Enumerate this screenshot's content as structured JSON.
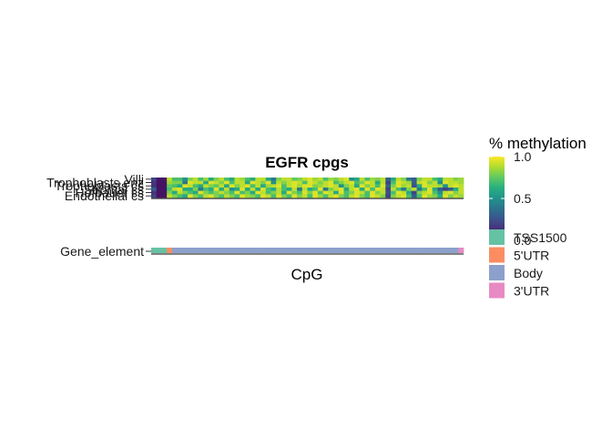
{
  "chart_data": {
    "type": "heatmap",
    "title": "EGFR cpgs",
    "xlabel": "CpG",
    "ylabel": "",
    "rows": [
      "Villi",
      "Trophoblasts enz",
      "Trophoblasts cs",
      "Stromal cs",
      "Hofbauer cs",
      "Endothelial cs"
    ],
    "n_cpgs": 60,
    "heat_values": [
      [
        0.2,
        0.05,
        0.05,
        0.9,
        0.7,
        0.7,
        0.5,
        0.8,
        0.9,
        0.7,
        0.85,
        0.6,
        0.8,
        0.9,
        0.7,
        0.6,
        0.9,
        0.85,
        0.7,
        0.6,
        0.9,
        0.9,
        0.6,
        0.4,
        0.8,
        0.9,
        0.9,
        0.75,
        0.8,
        0.9,
        0.95,
        0.85,
        0.9,
        0.7,
        0.85,
        0.8,
        0.9,
        0.95,
        0.5,
        0.6,
        0.9,
        0.7,
        0.85,
        0.8,
        0.9,
        0.3,
        0.6,
        0.9,
        0.8,
        0.4,
        0.3,
        0.8,
        0.9,
        0.9,
        0.7,
        0.6,
        0.9,
        0.9,
        0.8,
        0.85
      ],
      [
        0.15,
        0.05,
        0.05,
        0.85,
        0.8,
        0.8,
        0.4,
        0.95,
        0.9,
        0.9,
        0.6,
        0.95,
        0.9,
        0.8,
        0.95,
        0.7,
        0.9,
        0.9,
        0.6,
        0.95,
        0.9,
        0.8,
        0.95,
        0.5,
        0.9,
        0.8,
        0.9,
        0.95,
        0.9,
        0.7,
        0.95,
        0.9,
        0.8,
        0.9,
        0.95,
        0.7,
        0.8,
        0.9,
        0.95,
        0.7,
        0.8,
        0.95,
        0.9,
        0.6,
        0.9,
        0.2,
        0.7,
        0.95,
        0.9,
        0.85,
        0.3,
        0.9,
        0.95,
        0.8,
        0.9,
        0.5,
        0.95,
        0.9,
        0.9,
        0.85
      ],
      [
        0.15,
        0.05,
        0.05,
        0.75,
        0.7,
        0.6,
        0.95,
        0.9,
        0.7,
        0.6,
        0.9,
        0.8,
        0.75,
        0.9,
        0.6,
        0.95,
        0.8,
        0.9,
        0.95,
        0.7,
        0.9,
        0.6,
        0.85,
        0.9,
        0.95,
        0.7,
        0.9,
        0.95,
        0.85,
        0.95,
        0.95,
        0.8,
        0.85,
        0.9,
        0.95,
        0.9,
        0.5,
        0.8,
        0.9,
        0.6,
        0.95,
        0.8,
        0.9,
        0.7,
        0.95,
        0.3,
        0.8,
        0.95,
        0.85,
        0.9,
        0.25,
        0.6,
        0.95,
        0.9,
        0.9,
        0.85,
        0.5,
        0.9,
        0.95,
        0.9
      ],
      [
        0.3,
        0.05,
        0.05,
        0.7,
        0.9,
        0.95,
        0.6,
        0.6,
        0.8,
        0.4,
        0.7,
        0.6,
        0.95,
        0.6,
        0.9,
        0.5,
        0.6,
        0.95,
        0.6,
        0.9,
        0.6,
        0.95,
        0.7,
        0.6,
        0.9,
        0.7,
        0.6,
        0.9,
        0.4,
        0.9,
        0.6,
        0.7,
        0.95,
        0.4,
        0.8,
        0.9,
        0.95,
        0.6,
        0.9,
        0.95,
        0.6,
        0.95,
        0.7,
        0.95,
        0.9,
        0.2,
        0.9,
        0.7,
        0.4,
        0.8,
        0.9,
        0.4,
        0.7,
        0.95,
        0.6,
        0.3,
        0.2,
        0.3,
        0.6,
        0.9
      ],
      [
        0.15,
        0.05,
        0.05,
        0.8,
        0.6,
        0.9,
        0.8,
        0.7,
        0.6,
        0.95,
        0.8,
        0.7,
        0.8,
        0.9,
        0.8,
        0.7,
        0.95,
        0.7,
        0.8,
        0.6,
        0.95,
        0.9,
        0.7,
        0.8,
        0.9,
        0.6,
        0.95,
        0.8,
        0.7,
        0.95,
        0.8,
        0.95,
        0.7,
        0.95,
        0.9,
        0.6,
        0.95,
        0.7,
        0.8,
        0.95,
        0.9,
        0.7,
        0.95,
        0.8,
        0.9,
        0.25,
        0.7,
        0.95,
        0.9,
        0.6,
        0.2,
        0.8,
        0.9,
        0.95,
        0.7,
        0.5,
        0.9,
        0.95,
        0.8,
        0.9
      ],
      [
        0.2,
        0.05,
        0.05,
        0.9,
        0.8,
        0.7,
        0.6,
        0.95,
        0.8,
        0.7,
        0.9,
        0.95,
        0.8,
        0.7,
        0.9,
        0.8,
        0.7,
        0.95,
        0.85,
        0.8,
        0.7,
        0.95,
        0.9,
        0.7,
        0.95,
        0.8,
        0.7,
        0.95,
        0.8,
        0.9,
        0.7,
        0.95,
        0.85,
        0.7,
        0.9,
        0.95,
        0.8,
        0.7,
        0.9,
        0.95,
        0.8,
        0.7,
        0.95,
        0.9,
        0.8,
        0.2,
        0.8,
        0.9,
        0.95,
        0.7,
        0.3,
        0.7,
        0.95,
        0.85,
        0.8,
        0.6,
        0.95,
        0.8,
        0.9,
        0.85
      ]
    ],
    "gene_element_row_label": "Gene_element",
    "gene_elements": [
      "TSS1500",
      "TSS1500",
      "TSS1500",
      "5'UTR",
      "Body",
      "Body",
      "Body",
      "Body",
      "Body",
      "Body",
      "Body",
      "Body",
      "Body",
      "Body",
      "Body",
      "Body",
      "Body",
      "Body",
      "Body",
      "Body",
      "Body",
      "Body",
      "Body",
      "Body",
      "Body",
      "Body",
      "Body",
      "Body",
      "Body",
      "Body",
      "Body",
      "Body",
      "Body",
      "Body",
      "Body",
      "Body",
      "Body",
      "Body",
      "Body",
      "Body",
      "Body",
      "Body",
      "Body",
      "Body",
      "Body",
      "Body",
      "Body",
      "Body",
      "Body",
      "Body",
      "Body",
      "Body",
      "Body",
      "Body",
      "Body",
      "Body",
      "Body",
      "Body",
      "Body",
      "3'UTR"
    ],
    "color_scale": {
      "title": "% methylation",
      "palette": "viridis",
      "limits": [
        0.0,
        1.0
      ],
      "breaks": [
        "1.0",
        "0.5",
        "0.0"
      ]
    },
    "element_legend": [
      {
        "label": "TSS1500",
        "color": "#66C2A5"
      },
      {
        "label": "5'UTR",
        "color": "#FC8D62"
      },
      {
        "label": "Body",
        "color": "#8DA0CB"
      },
      {
        "label": "3'UTR",
        "color": "#E78AC3"
      }
    ],
    "legend_position": "right",
    "grid": false
  }
}
